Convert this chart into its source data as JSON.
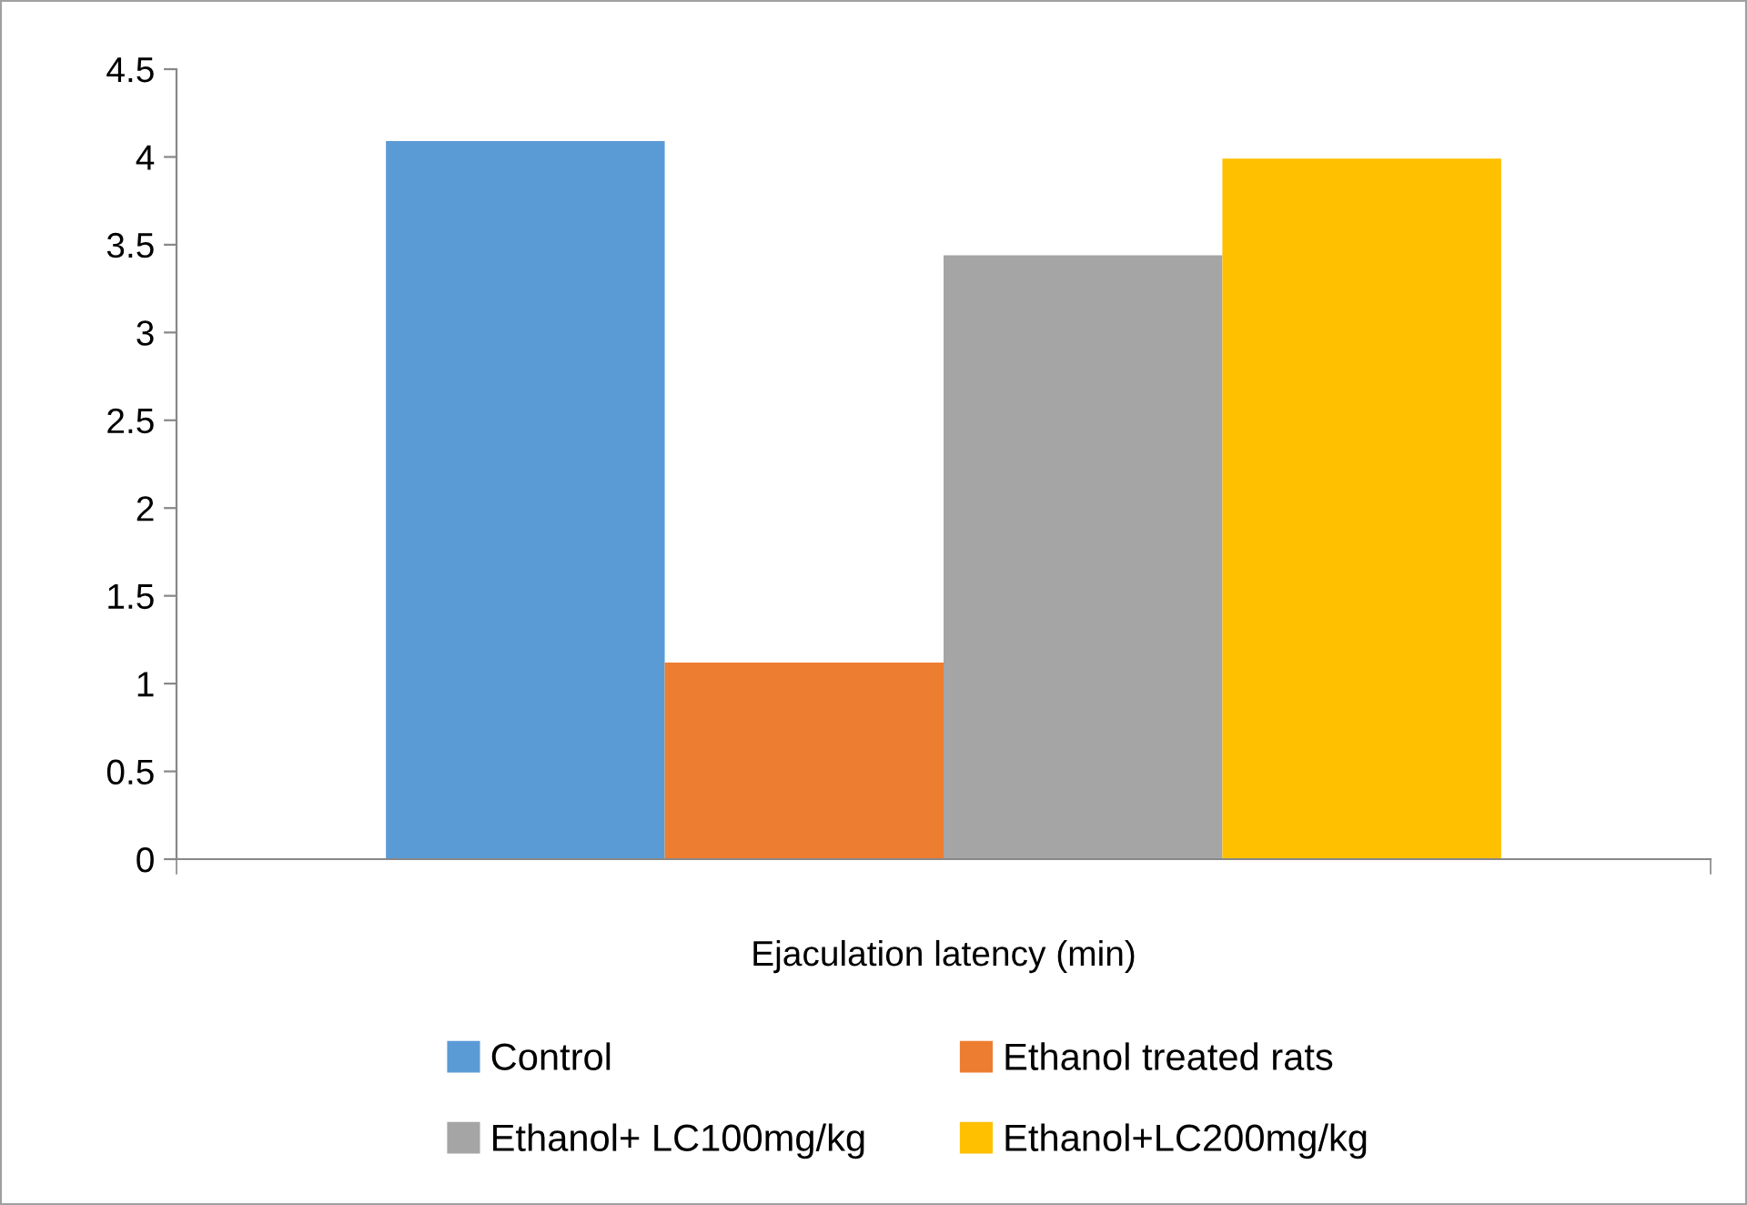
{
  "chart_data": {
    "type": "bar",
    "categories": [
      "Ejaculation latency (min)"
    ],
    "series": [
      {
        "name": "Control",
        "color": "#5b9bd5",
        "values": [
          4.09
        ]
      },
      {
        "name": "Ethanol treated rats",
        "color": "#ed7d31",
        "values": [
          1.12
        ]
      },
      {
        "name": "Ethanol+ LC100mg/kg",
        "color": "#a5a5a5",
        "values": [
          3.44
        ]
      },
      {
        "name": "Ethanol+LC200mg/kg",
        "color": "#ffc000",
        "values": [
          3.99
        ]
      }
    ],
    "ylim": [
      0,
      4.5
    ],
    "yticks": [
      0,
      0.5,
      1,
      1.5,
      2,
      2.5,
      3,
      3.5,
      4,
      4.5
    ],
    "grid": false,
    "legend": "bottom"
  }
}
